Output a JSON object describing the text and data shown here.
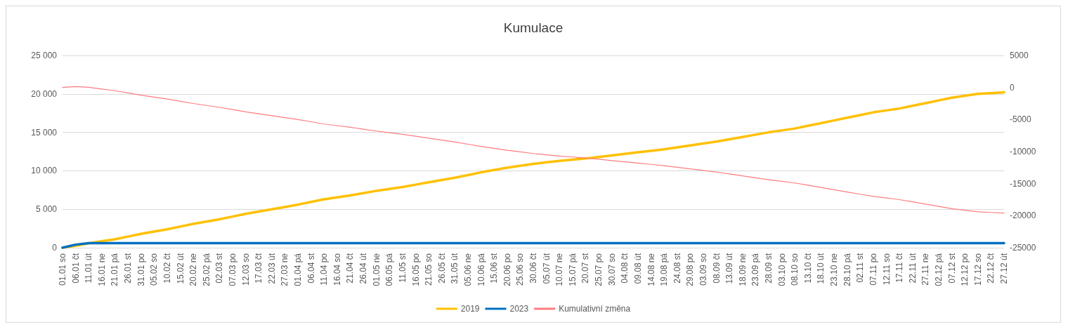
{
  "chart_data": {
    "type": "line",
    "title": "Kumulace",
    "categories": [
      "01.01 so",
      "06.01 čt",
      "11.01 út",
      "16.01 ne",
      "21.01 pá",
      "26.01 st",
      "31.01 po",
      "05.02 so",
      "10.02 čt",
      "15.02 út",
      "20.02 ne",
      "25.02 pá",
      "02.03 st",
      "07.03 po",
      "12.03 so",
      "17.03 čt",
      "22.03 út",
      "27.03 ne",
      "01.04 pá",
      "06.04 st",
      "11.04 po",
      "16.04 so",
      "21.04 čt",
      "26.04 út",
      "01.05 ne",
      "06.05 pá",
      "11.05 st",
      "16.05 po",
      "21.05 so",
      "26.05 čt",
      "31.05 út",
      "05.06 ne",
      "10.06 pá",
      "15.06 st",
      "20.06 po",
      "25.06 so",
      "30.06 čt",
      "05.07 út",
      "10.07 ne",
      "15.07 pá",
      "20.07 st",
      "25.07 po",
      "30.07 so",
      "04.08 čt",
      "09.08 út",
      "14.08 ne",
      "19.08 pá",
      "24.08 st",
      "29.08 po",
      "03.09 so",
      "08.09 čt",
      "13.09 út",
      "18.09 ne",
      "23.09 pá",
      "28.09 st",
      "03.10 po",
      "08.10 so",
      "13.10 čt",
      "18.10 út",
      "23.10 ne",
      "28.10 pá",
      "02.11 st",
      "07.11 po",
      "12.11 so",
      "17.11 čt",
      "22.11 út",
      "27.11 ne",
      "02.12 pá",
      "07.12 st",
      "12.12 po",
      "17.12 so",
      "22.12 čt",
      "27.12 út"
    ],
    "series": [
      {
        "name": "2019",
        "color": "#ffc000",
        "values": [
          0,
          250,
          570,
          850,
          1100,
          1450,
          1800,
          2100,
          2400,
          2750,
          3100,
          3400,
          3700,
          4050,
          4400,
          4700,
          5000,
          5300,
          5600,
          5950,
          6300,
          6550,
          6800,
          7100,
          7400,
          7650,
          7900,
          8200,
          8500,
          8800,
          9100,
          9450,
          9800,
          10100,
          10400,
          10650,
          10900,
          11100,
          11300,
          11450,
          11600,
          11800,
          12000,
          12200,
          12400,
          12600,
          12800,
          13050,
          13300,
          13550,
          13800,
          14100,
          14400,
          14700,
          15000,
          15250,
          15500,
          15850,
          16200,
          16550,
          16900,
          17250,
          17600,
          17850,
          18100,
          18450,
          18800,
          19150,
          19500,
          19750,
          20000,
          20100,
          20200
        ]
      },
      {
        "name": "2023",
        "color": "#0070c0",
        "values": [
          0,
          400,
          600,
          600,
          600,
          600,
          600,
          600,
          600,
          600,
          600,
          600,
          600,
          600,
          600,
          600,
          600,
          600,
          600,
          600,
          600,
          600,
          600,
          600,
          600,
          600,
          600,
          600,
          600,
          600,
          600,
          600,
          600,
          600,
          600,
          600,
          600,
          600,
          600,
          600,
          600,
          600,
          600,
          600,
          600,
          600,
          600,
          600,
          600,
          600,
          600,
          600,
          600,
          600,
          600,
          600,
          600,
          600,
          600,
          600,
          600,
          600,
          600,
          600,
          600,
          600,
          600,
          600,
          600,
          600,
          600,
          600,
          600
        ]
      },
      {
        "name": "Kumulativní změna",
        "color": "#ff7c80",
        "axis": "y2",
        "values": [
          0,
          150,
          30,
          -250,
          -500,
          -850,
          -1200,
          -1500,
          -1800,
          -2150,
          -2500,
          -2800,
          -3100,
          -3450,
          -3800,
          -4100,
          -4400,
          -4700,
          -5000,
          -5350,
          -5700,
          -5950,
          -6200,
          -6500,
          -6800,
          -7050,
          -7300,
          -7600,
          -7900,
          -8200,
          -8500,
          -8850,
          -9200,
          -9500,
          -9800,
          -10050,
          -10300,
          -10500,
          -10700,
          -10850,
          -11000,
          -11200,
          -11400,
          -11600,
          -11800,
          -12000,
          -12200,
          -12450,
          -12700,
          -12950,
          -13200,
          -13500,
          -13800,
          -14100,
          -14400,
          -14650,
          -14900,
          -15250,
          -15600,
          -15950,
          -16300,
          -16650,
          -17000,
          -17250,
          -17500,
          -17850,
          -18200,
          -18550,
          -18900,
          -19150,
          -19400,
          -19500,
          -19600
        ]
      }
    ],
    "ylim": [
      0,
      25000
    ],
    "yticks": [
      {
        "value": 0,
        "label": "0"
      },
      {
        "value": 5000,
        "label": "5 000"
      },
      {
        "value": 10000,
        "label": "10 000"
      },
      {
        "value": 15000,
        "label": "15 000"
      },
      {
        "value": 20000,
        "label": "20 000"
      },
      {
        "value": 25000,
        "label": "25 000"
      }
    ],
    "y2lim": [
      -25000,
      5000
    ],
    "y2ticks": [
      -25000,
      -20000,
      -15000,
      -10000,
      -5000,
      0,
      5000
    ],
    "grid": "y",
    "legend": "bottom",
    "marker": "none",
    "line_style": "solid"
  }
}
